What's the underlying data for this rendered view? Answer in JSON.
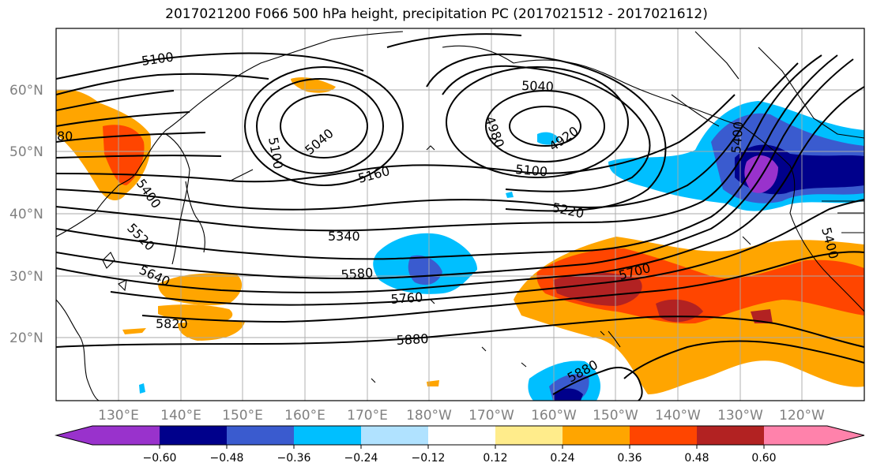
{
  "title": "2017021200 F066 500 hPa height, precipitation PC (2017021512 - 2017021612)",
  "map": {
    "lat_labels": [
      "60°N",
      "50°N",
      "40°N",
      "30°N",
      "20°N"
    ],
    "lon_labels": [
      "130°E",
      "140°E",
      "150°E",
      "160°E",
      "170°E",
      "180°W",
      "170°W",
      "160°W",
      "150°W",
      "140°W",
      "130°W",
      "120°W"
    ],
    "contour_labels": [
      "5100",
      "5100",
      "5040",
      "5040",
      "4980",
      "4920",
      "5100",
      "5160",
      "5220",
      "5340",
      "5400",
      "5520",
      "5580",
      "5640",
      "5700",
      "5760",
      "5820",
      "5880",
      "5880",
      "80",
      "5400",
      "5400"
    ]
  },
  "colorbar": {
    "ticks": [
      "−0.60",
      "−0.48",
      "−0.36",
      "−0.24",
      "−0.12",
      "0.12",
      "0.24",
      "0.36",
      "0.48",
      "0.60"
    ],
    "colors": [
      "#9932cc",
      "#00008b",
      "#3a5bcf",
      "#00bfff",
      "#b0e2ff",
      "#ffffff",
      "#ffec8b",
      "#ffa500",
      "#ff4500",
      "#b22222",
      "#ff82ab"
    ]
  }
}
